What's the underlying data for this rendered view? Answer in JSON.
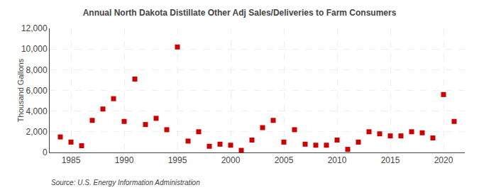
{
  "chart_data": {
    "type": "scatter",
    "title": "Annual North Dakota Distillate Other Adj Sales/Deliveries to Farm Consumers",
    "ylabel": "Thousand Gallons",
    "annotations": [
      "Source: U.S. Energy Information Administration"
    ],
    "x": [
      1984,
      1985,
      1986,
      1987,
      1988,
      1989,
      1990,
      1991,
      1992,
      1993,
      1994,
      1995,
      1996,
      1997,
      1998,
      1999,
      2000,
      2001,
      2002,
      2003,
      2004,
      2005,
      2006,
      2007,
      2008,
      2009,
      2010,
      2011,
      2012,
      2013,
      2014,
      2015,
      2016,
      2017,
      2018,
      2019,
      2020,
      2021
    ],
    "values": [
      1500,
      1000,
      650,
      3100,
      4200,
      5200,
      3000,
      7100,
      2700,
      3300,
      2200,
      10200,
      1100,
      2000,
      600,
      800,
      700,
      200,
      1200,
      2400,
      3100,
      1000,
      2200,
      800,
      700,
      700,
      1200,
      300,
      1000,
      2000,
      1800,
      1600,
      1600,
      2000,
      1900,
      1400,
      5600,
      3000
    ],
    "color": "#cc0000",
    "marker": "square",
    "xlim": [
      1983,
      2022
    ],
    "xticks": [
      1985,
      1990,
      1995,
      2000,
      2005,
      2010,
      2015,
      2020
    ],
    "ylim": [
      0,
      12000
    ],
    "yticks": [
      0,
      {
        "value": 2000,
        "label": "2,000"
      },
      {
        "value": 4000,
        "label": "4,000"
      },
      {
        "value": 6000,
        "label": "6,000"
      },
      {
        "value": 8000,
        "label": "8,000"
      },
      {
        "value": 10000,
        "label": "10,000"
      },
      {
        "value": 12000,
        "label": "12,000"
      }
    ],
    "grid": true
  }
}
